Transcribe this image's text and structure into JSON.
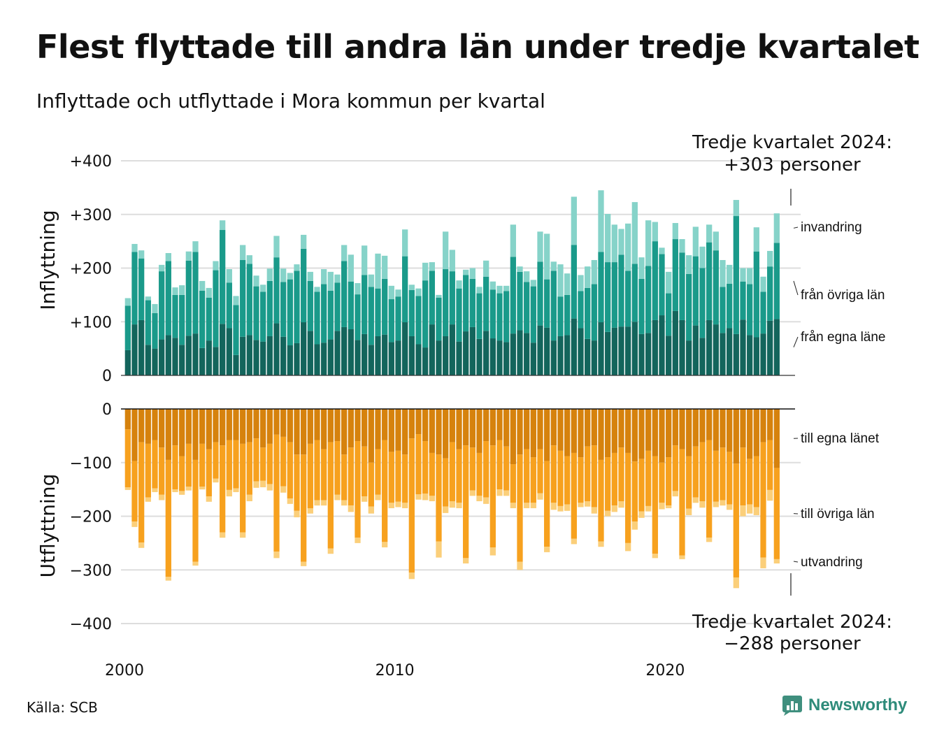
{
  "title": "Flest flyttade till andra län under tredje kvartalet",
  "subtitle": "Inflyttade och utflyttade i Mora kommun per kvartal",
  "source": "Källa: SCB",
  "logo_text": "Newsworthy",
  "icon": "newsworthy-logo-icon",
  "colors": {
    "in_own": "#13655c",
    "in_other": "#1a9a8a",
    "in_imm": "#86d3c9",
    "out_own": "#d6820d",
    "out_other": "#f7a11e",
    "out_emi": "#fbcf7a",
    "grid": "#dddddd",
    "text": "#111111"
  },
  "chart_data": [
    {
      "type": "bar",
      "stacked": true,
      "ylabel": "Inflyttning",
      "ylim": [
        0,
        400
      ],
      "yticks": [
        "0",
        "+100",
        "+200",
        "+300",
        "+400"
      ],
      "xlim": [
        2000,
        2024.75
      ],
      "xticks": [
        "2000",
        "2010",
        "2020"
      ],
      "x_start": "2000 Q1",
      "grid": true,
      "callout": {
        "line1": "Tredje kvartalet 2024:",
        "line2": "+303 personer"
      },
      "series": [
        {
          "name": "från egna läne",
          "values": [
            47,
            95,
            103,
            57,
            50,
            67,
            75,
            70,
            57,
            74,
            78,
            51,
            65,
            53,
            96,
            88,
            38,
            72,
            75,
            66,
            63,
            73,
            97,
            72,
            56,
            60,
            99,
            83,
            58,
            61,
            67,
            83,
            90,
            86,
            66,
            77,
            57,
            73,
            76,
            62,
            65,
            99,
            73,
            58,
            52,
            95,
            65,
            73,
            95,
            63,
            82,
            90,
            68,
            83,
            69,
            65,
            62,
            78,
            84,
            79,
            61,
            93,
            89,
            65,
            73,
            75,
            106,
            88,
            68,
            65,
            99,
            81,
            89,
            91,
            91,
            100,
            77,
            79,
            103,
            112,
            74,
            120,
            103,
            65,
            93,
            70,
            103,
            95,
            79,
            88,
            77,
            104,
            75,
            71,
            78,
            102,
            105
          ]
        },
        {
          "name": "från övriga län",
          "values": [
            83,
            135,
            115,
            83,
            66,
            127,
            138,
            80,
            93,
            140,
            152,
            107,
            80,
            143,
            175,
            85,
            93,
            143,
            133,
            100,
            93,
            103,
            123,
            102,
            123,
            135,
            137,
            93,
            98,
            109,
            91,
            90,
            123,
            89,
            85,
            110,
            108,
            89,
            104,
            80,
            82,
            123,
            86,
            90,
            125,
            100,
            80,
            125,
            99,
            99,
            105,
            90,
            85,
            101,
            91,
            88,
            95,
            143,
            109,
            95,
            105,
            119,
            90,
            130,
            74,
            75,
            137,
            69,
            95,
            105,
            131,
            130,
            122,
            134,
            104,
            108,
            103,
            125,
            147,
            114,
            79,
            134,
            126,
            124,
            129,
            130,
            145,
            138,
            86,
            83,
            220,
            71,
            95,
            160,
            78,
            101,
            142
          ]
        },
        {
          "name": "invandring",
          "values": [
            14,
            15,
            15,
            7,
            17,
            12,
            15,
            14,
            18,
            17,
            20,
            18,
            18,
            17,
            18,
            25,
            17,
            28,
            16,
            20,
            13,
            23,
            40,
            25,
            12,
            12,
            26,
            17,
            9,
            28,
            35,
            15,
            30,
            50,
            21,
            55,
            23,
            65,
            43,
            25,
            13,
            50,
            10,
            14,
            33,
            16,
            5,
            70,
            40,
            15,
            10,
            20,
            12,
            30,
            15,
            14,
            10,
            60,
            10,
            20,
            12,
            56,
            85,
            17,
            60,
            40,
            90,
            30,
            40,
            45,
            115,
            90,
            70,
            48,
            88,
            115,
            40,
            85,
            36,
            12,
            40,
            30,
            25,
            35,
            55,
            40,
            33,
            35,
            50,
            35,
            30,
            25,
            30,
            45,
            28,
            29,
            55
          ]
        }
      ]
    },
    {
      "type": "bar",
      "stacked": true,
      "ylabel": "Utflyttning",
      "ylim": [
        -400,
        0
      ],
      "yticks": [
        "0",
        "−100",
        "−200",
        "−300",
        "−400"
      ],
      "xlim": [
        2000,
        2024.75
      ],
      "xticks": [
        "2000",
        "2010",
        "2020"
      ],
      "x_start": "2000 Q1",
      "grid": true,
      "callout": {
        "line1": "Tredje kvartalet 2024:",
        "line2": "−288 personer"
      },
      "series": [
        {
          "name": "till egna länet",
          "values": [
            -38,
            -97,
            -62,
            -65,
            -58,
            -72,
            -95,
            -68,
            -88,
            -65,
            -95,
            -65,
            -75,
            -62,
            -68,
            -58,
            -58,
            -65,
            -62,
            -55,
            -72,
            -65,
            -48,
            -52,
            -62,
            -85,
            -85,
            -65,
            -58,
            -75,
            -62,
            -60,
            -85,
            -72,
            -60,
            -70,
            -100,
            -75,
            -58,
            -80,
            -78,
            -85,
            -55,
            -47,
            -60,
            -82,
            -85,
            -92,
            -62,
            -75,
            -68,
            -72,
            -82,
            -60,
            -68,
            -58,
            -70,
            -103,
            -85,
            -75,
            -90,
            -75,
            -97,
            -68,
            -78,
            -88,
            -82,
            -90,
            -70,
            -68,
            -95,
            -90,
            -82,
            -72,
            -82,
            -98,
            -93,
            -78,
            -88,
            -100,
            -90,
            -68,
            -75,
            -88,
            -70,
            -62,
            -58,
            -78,
            -72,
            -80,
            -102,
            -72,
            -93,
            -88,
            -62,
            -58,
            -110
          ]
        },
        {
          "name": "till övriga län",
          "values": [
            -108,
            -113,
            -187,
            -100,
            -90,
            -88,
            -218,
            -82,
            -65,
            -80,
            -190,
            -80,
            -88,
            -68,
            -162,
            -93,
            -90,
            -165,
            -98,
            -80,
            -62,
            -75,
            -218,
            -92,
            -105,
            -105,
            -200,
            -120,
            -112,
            -95,
            -198,
            -100,
            -85,
            -108,
            -180,
            -93,
            -82,
            -85,
            -190,
            -95,
            -95,
            -90,
            -250,
            -112,
            -98,
            -80,
            -162,
            -90,
            -110,
            -100,
            -210,
            -80,
            -80,
            -105,
            -190,
            -92,
            -82,
            -72,
            -200,
            -100,
            -85,
            -82,
            -160,
            -107,
            -103,
            -90,
            -160,
            -85,
            -102,
            -115,
            -152,
            -100,
            -98,
            -100,
            -168,
            -112,
            -98,
            -103,
            -182,
            -75,
            -90,
            -85,
            -198,
            -98,
            -95,
            -110,
            -182,
            -95,
            -98,
            -98,
            -212,
            -108,
            -85,
            -95,
            -215,
            -93,
            -170
          ]
        },
        {
          "name": "utvandring",
          "values": [
            -5,
            -10,
            -10,
            -8,
            -7,
            -10,
            -7,
            -5,
            -7,
            -7,
            -7,
            -5,
            -10,
            -7,
            -10,
            -12,
            -7,
            -10,
            -12,
            -12,
            -12,
            -12,
            -12,
            -12,
            -10,
            -12,
            -8,
            -10,
            -10,
            -10,
            -10,
            -10,
            -10,
            -12,
            -10,
            -10,
            -13,
            -10,
            -10,
            -10,
            -10,
            -10,
            -12,
            -10,
            -12,
            -10,
            -30,
            -12,
            -12,
            -10,
            -10,
            -10,
            -10,
            -12,
            -15,
            -12,
            -10,
            -10,
            -15,
            -10,
            -10,
            -12,
            -10,
            -13,
            -10,
            -12,
            -10,
            -8,
            -10,
            -12,
            -10,
            -10,
            -12,
            -12,
            -15,
            -15,
            -12,
            -10,
            -8,
            -12,
            -5,
            -10,
            -7,
            -12,
            -10,
            -12,
            -8,
            -10,
            -10,
            -10,
            -20,
            -20,
            -17,
            -15,
            -20,
            -20,
            -8
          ]
        }
      ]
    }
  ]
}
